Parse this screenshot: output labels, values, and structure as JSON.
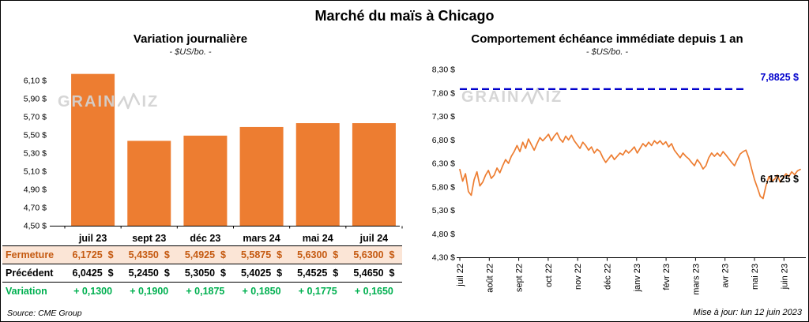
{
  "page": {
    "title": "Marché du maïs à Chicago",
    "source_note": "Source: CME Group",
    "update_note": "Mise à jour: lun 12 juin 2023",
    "watermark": {
      "full": "GRAINWIZ",
      "left": "GRAIN",
      "right": "IZ"
    }
  },
  "colors": {
    "bar_orange": "#ED7D31",
    "close_text": "#C55A11",
    "close_bg": "#FBE5D6",
    "variation_green": "#00B050",
    "target_blue": "#0000CC",
    "watermark_gray": "#D2D2D2"
  },
  "left_panel": {
    "title": "Variation journalière",
    "subtitle": "- $US/bo. -",
    "y_tick_labels": [
      "6,10 $",
      "5,90 $",
      "5,70 $",
      "5,50 $",
      "5,30 $",
      "5,10 $",
      "4,90 $",
      "4,70 $",
      "4,50 $"
    ]
  },
  "right_panel": {
    "title": "Comportement échéance immédiate depuis 1 an",
    "subtitle": "- $US/bo. -",
    "y_tick_labels": [
      "8,30 $",
      "7,80 $",
      "7,30 $",
      "6,80 $",
      "6,30 $",
      "5,80 $",
      "5,30 $",
      "4,80 $",
      "4,30 $"
    ],
    "target_label": "7,8825 $",
    "last_label": "6,1725 $"
  },
  "table": {
    "header": [
      "juil 23",
      "sept 23",
      "déc 23",
      "mars 24",
      "mai 24",
      "juil 24"
    ],
    "rows": [
      {
        "label": "Fermeture",
        "style": "close",
        "values": [
          "6,1725  $",
          "5,4350  $",
          "5,4925  $",
          "5,5875  $",
          "5,6300  $",
          "5,6300  $"
        ]
      },
      {
        "label": "Précédent",
        "style": "previous",
        "values": [
          "6,0425  $",
          "5,2450  $",
          "5,3050  $",
          "5,4025  $",
          "5,4525  $",
          "5,4650  $"
        ]
      },
      {
        "label": "Variation",
        "style": "variation",
        "values": [
          "+ 0,1300",
          "+ 0,1900",
          "+ 0,1875",
          "+ 0,1850",
          "+ 0,1775",
          "+ 0,1650"
        ]
      }
    ]
  },
  "chart_data": [
    {
      "type": "bar",
      "title": "Variation journalière",
      "subtitle": "- $US/bo. -",
      "categories": [
        "juil 23",
        "sept 23",
        "déc 23",
        "mars 24",
        "mai 24",
        "juil 24"
      ],
      "values": [
        6.1725,
        5.435,
        5.4925,
        5.5875,
        5.63,
        5.63
      ],
      "previous": [
        6.0425,
        5.245,
        5.305,
        5.4025,
        5.4525,
        5.465
      ],
      "variation": [
        0.13,
        0.19,
        0.1875,
        0.185,
        0.1775,
        0.165
      ],
      "ylabel": "$US/bo.",
      "ylim": [
        4.5,
        6.2
      ],
      "yticks": [
        6.1,
        5.9,
        5.7,
        5.5,
        5.3,
        5.1,
        4.9,
        4.7,
        4.5
      ],
      "bar_color": "#ED7D31",
      "grid": false
    },
    {
      "type": "line",
      "title": "Comportement échéance immédiate depuis 1 an",
      "subtitle": "- $US/bo. -",
      "x_labels": [
        "juil 22",
        "août 22",
        "sept 22",
        "oct 22",
        "nov 22",
        "déc 22",
        "janv 23",
        "févr 23",
        "mars 23",
        "avr 23",
        "mai 23",
        "juin 23"
      ],
      "ylim": [
        4.3,
        8.3
      ],
      "yticks": [
        8.3,
        7.8,
        7.3,
        6.8,
        6.3,
        5.8,
        5.3,
        4.8,
        4.3
      ],
      "line_color": "#ED7D31",
      "reference": {
        "value": 7.8825,
        "label": "7,8825 $",
        "color": "#0000CC",
        "dash": true
      },
      "last_value": 6.1725,
      "last_label": "6,1725 $",
      "grid": false,
      "legend": false,
      "values": [
        6.17,
        5.92,
        6.08,
        5.7,
        5.62,
        5.95,
        6.12,
        5.82,
        5.9,
        6.05,
        6.15,
        5.98,
        6.05,
        6.2,
        6.1,
        6.25,
        6.38,
        6.3,
        6.45,
        6.55,
        6.68,
        6.55,
        6.75,
        6.62,
        6.82,
        6.7,
        6.58,
        6.72,
        6.85,
        6.78,
        6.85,
        6.92,
        6.78,
        6.88,
        6.95,
        6.82,
        6.75,
        6.88,
        6.8,
        6.9,
        6.78,
        6.7,
        6.62,
        6.75,
        6.68,
        6.58,
        6.65,
        6.52,
        6.6,
        6.55,
        6.42,
        6.32,
        6.4,
        6.48,
        6.38,
        6.45,
        6.52,
        6.48,
        6.58,
        6.52,
        6.58,
        6.65,
        6.52,
        6.62,
        6.72,
        6.66,
        6.75,
        6.68,
        6.78,
        6.72,
        6.78,
        6.7,
        6.76,
        6.65,
        6.72,
        6.58,
        6.5,
        6.42,
        6.52,
        6.45,
        6.4,
        6.32,
        6.25,
        6.38,
        6.3,
        6.18,
        6.25,
        6.42,
        6.52,
        6.45,
        6.52,
        6.45,
        6.55,
        6.48,
        6.4,
        6.32,
        6.25,
        6.38,
        6.5,
        6.55,
        6.58,
        6.42,
        6.18,
        5.95,
        5.78,
        5.6,
        5.55,
        5.82,
        6.02,
        5.92,
        5.96,
        6.05,
        5.9,
        6.0,
        6.08,
        6.02,
        6.12,
        6.06,
        6.14,
        6.1725
      ]
    }
  ]
}
